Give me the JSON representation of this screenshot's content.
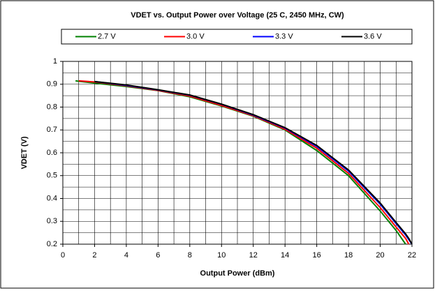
{
  "chart_data": {
    "type": "line",
    "title": "VDET vs. Output Power over Voltage (25 C, 2450 MHz, CW)",
    "x_label": "Output Power (dBm)",
    "y_label": "VDET (V)",
    "x": [
      0.8,
      1,
      2,
      4,
      6,
      8,
      10,
      12,
      14,
      16,
      18,
      20,
      21,
      21.6,
      21.8,
      22
    ],
    "series": [
      {
        "name": "2.7 V",
        "color": "#008000",
        "values": [
          0.915,
          0.913,
          0.905,
          0.89,
          0.872,
          0.845,
          0.805,
          0.76,
          0.7,
          0.61,
          0.5,
          0.345,
          0.26,
          0.2,
          null,
          null
        ]
      },
      {
        "name": "3.0 V",
        "color": "#ff0000",
        "values": [
          null,
          0.915,
          0.91,
          0.893,
          0.873,
          0.848,
          0.807,
          0.762,
          0.703,
          0.62,
          0.51,
          0.36,
          0.275,
          0.225,
          0.2,
          null
        ]
      },
      {
        "name": "3.3 V",
        "color": "#0000ff",
        "values": [
          null,
          null,
          0.912,
          0.895,
          0.875,
          0.852,
          0.812,
          0.765,
          0.708,
          0.628,
          0.52,
          0.375,
          0.29,
          0.24,
          0.22,
          0.2
        ]
      },
      {
        "name": "3.6 V",
        "color": "#000000",
        "values": [
          null,
          null,
          0.912,
          0.897,
          0.876,
          0.853,
          0.813,
          0.767,
          0.71,
          0.632,
          0.525,
          0.38,
          0.295,
          0.245,
          0.225,
          0.2
        ]
      }
    ],
    "xlim": [
      0,
      22
    ],
    "xticks": [
      0,
      2,
      4,
      6,
      8,
      10,
      12,
      14,
      16,
      18,
      20,
      22
    ],
    "x_minor_grid": [
      1,
      3,
      5,
      7,
      9,
      11,
      13,
      15,
      17,
      19,
      21
    ],
    "ylim": [
      0.2,
      1
    ],
    "yticks": [
      0.2,
      0.3,
      0.4,
      0.5,
      0.6,
      0.7,
      0.8,
      0.9,
      1
    ],
    "y_minor_grid": [
      0.25,
      0.35,
      0.45,
      0.55,
      0.65,
      0.75,
      0.85,
      0.95
    ],
    "grid": true,
    "legend": "top"
  }
}
